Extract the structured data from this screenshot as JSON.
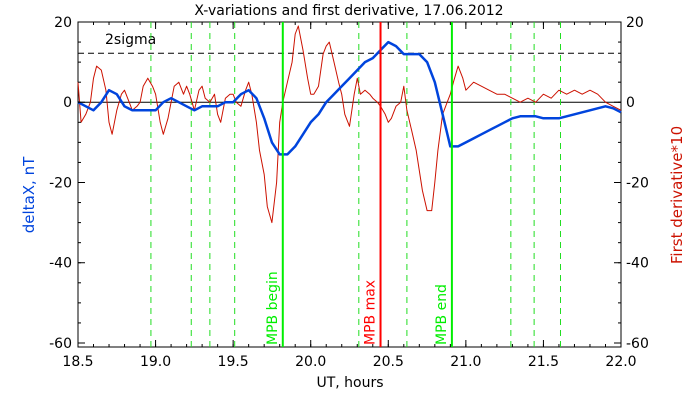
{
  "chart_data": {
    "type": "line",
    "title": "X-variations and first derivative, 17.06.2012",
    "xlabel": "UT, hours",
    "ylabel_left": "deltaX, nT",
    "ylabel_right": "First derivative*10",
    "xlim": [
      18.5,
      22.0
    ],
    "ylim": [
      -61,
      20
    ],
    "x_ticks": [
      18.5,
      19.0,
      19.5,
      20.0,
      20.5,
      21.0,
      21.5,
      22.0
    ],
    "x_tick_labels": [
      "18.5",
      "19.0",
      "19.5",
      "20.0",
      "20.5",
      "21.0",
      "21.5",
      "22.0"
    ],
    "y_ticks": [
      20,
      0,
      -20,
      -40,
      -60
    ],
    "y_tick_labels": [
      "20",
      "0",
      "-20",
      "-40",
      "-60"
    ],
    "grid": false,
    "two_sigma": {
      "label": "2sigma",
      "value": 12.2,
      "color": "#000000"
    },
    "zero_line": 0,
    "dashed_markers": {
      "color": "#22dd22",
      "x": [
        18.97,
        19.23,
        19.35,
        19.51,
        20.31,
        20.62,
        21.29,
        21.44,
        21.61
      ]
    },
    "markers": [
      {
        "label": "MPB begin",
        "x": 19.82,
        "color": "#00ee00"
      },
      {
        "label": "MPB max",
        "x": 20.45,
        "color": "#ff0000"
      },
      {
        "label": "MPB end",
        "x": 20.91,
        "color": "#00ee00"
      }
    ],
    "series": [
      {
        "color": "#0044dd",
        "axis": "left",
        "x": [
          18.5,
          18.55,
          18.6,
          18.65,
          18.7,
          18.75,
          18.8,
          18.85,
          18.9,
          18.95,
          19.0,
          19.05,
          19.1,
          19.15,
          19.2,
          19.25,
          19.3,
          19.35,
          19.4,
          19.45,
          19.5,
          19.55,
          19.6,
          19.65,
          19.7,
          19.75,
          19.8,
          19.85,
          19.9,
          19.95,
          20.0,
          20.05,
          20.1,
          20.15,
          20.2,
          20.25,
          20.3,
          20.35,
          20.4,
          20.45,
          20.5,
          20.55,
          20.6,
          20.65,
          20.7,
          20.75,
          20.8,
          20.85,
          20.9,
          20.95,
          21.0,
          21.05,
          21.1,
          21.15,
          21.2,
          21.25,
          21.3,
          21.35,
          21.4,
          21.45,
          21.5,
          21.55,
          21.6,
          21.65,
          21.7,
          21.75,
          21.8,
          21.85,
          21.9,
          21.95,
          22.0
        ],
        "values": [
          0,
          -1,
          -2,
          0,
          3,
          2,
          -1,
          -2,
          -2,
          -2,
          -2,
          0,
          1,
          0,
          -1,
          -2,
          -1,
          -1,
          -1,
          0,
          0,
          2,
          3,
          1,
          -4,
          -10,
          -13,
          -13,
          -11,
          -8,
          -5,
          -3,
          0,
          2,
          4,
          6,
          8,
          10,
          11,
          13,
          15,
          14,
          12,
          12,
          12,
          10,
          5,
          -3,
          -11,
          -11,
          -10,
          -9,
          -8,
          -7,
          -6,
          -5,
          -4,
          -3.5,
          -3.5,
          -3.5,
          -4,
          -4,
          -4,
          -3.5,
          -3,
          -2.5,
          -2,
          -1.5,
          -1,
          -1.5,
          -2.5
        ]
      },
      {
        "color": "#cc1100",
        "axis": "right",
        "x": [
          18.5,
          18.52,
          18.55,
          18.58,
          18.6,
          18.62,
          18.65,
          18.68,
          18.7,
          18.72,
          18.75,
          18.78,
          18.8,
          18.83,
          18.85,
          18.88,
          18.9,
          18.92,
          18.95,
          18.98,
          19.0,
          19.03,
          19.05,
          19.08,
          19.1,
          19.12,
          19.15,
          19.18,
          19.2,
          19.22,
          19.25,
          19.28,
          19.3,
          19.32,
          19.35,
          19.38,
          19.4,
          19.42,
          19.45,
          19.48,
          19.5,
          19.52,
          19.55,
          19.58,
          19.6,
          19.62,
          19.65,
          19.67,
          19.7,
          19.72,
          19.75,
          19.78,
          19.8,
          19.82,
          19.85,
          19.88,
          19.9,
          19.92,
          19.95,
          19.98,
          20.0,
          20.02,
          20.05,
          20.08,
          20.1,
          20.12,
          20.15,
          20.18,
          20.2,
          20.22,
          20.25,
          20.28,
          20.3,
          20.32,
          20.35,
          20.38,
          20.4,
          20.43,
          20.45,
          20.48,
          20.5,
          20.52,
          20.55,
          20.58,
          20.6,
          20.62,
          20.65,
          20.68,
          20.7,
          20.72,
          20.75,
          20.78,
          20.8,
          20.82,
          20.85,
          20.88,
          20.9,
          20.92,
          20.95,
          20.98,
          21.0,
          21.05,
          21.1,
          21.15,
          21.2,
          21.25,
          21.3,
          21.35,
          21.4,
          21.45,
          21.5,
          21.55,
          21.6,
          21.65,
          21.7,
          21.75,
          21.8,
          21.85,
          21.9,
          21.95,
          22.0
        ],
        "values": [
          5,
          -5,
          -3,
          0,
          6,
          9,
          8,
          3,
          -5,
          -8,
          -2,
          2,
          3,
          0,
          -2,
          -1,
          0,
          4,
          6,
          4,
          2,
          -5,
          -8,
          -4,
          0,
          4,
          5,
          2,
          4,
          2,
          -2,
          3,
          4,
          1,
          0,
          2,
          -3,
          -5,
          1,
          2,
          2,
          0,
          -1,
          3,
          5,
          2,
          -5,
          -12,
          -18,
          -26,
          -30,
          -20,
          -5,
          0,
          5,
          10,
          17,
          19,
          13,
          6,
          2,
          2,
          4,
          12,
          14,
          15,
          10,
          5,
          2,
          -3,
          -6,
          2,
          6,
          2,
          3,
          2,
          1,
          0,
          -1,
          -3,
          -5,
          -4,
          -1,
          0,
          4,
          -2,
          -7,
          -12,
          -17,
          -22,
          -27,
          -27,
          -20,
          -12,
          -3,
          0,
          2,
          5,
          9,
          6,
          3,
          5,
          4,
          3,
          2,
          2,
          1,
          0,
          1,
          0,
          2,
          1,
          3,
          2,
          3,
          2,
          3,
          2,
          0,
          -1,
          -2
        ]
      }
    ]
  }
}
